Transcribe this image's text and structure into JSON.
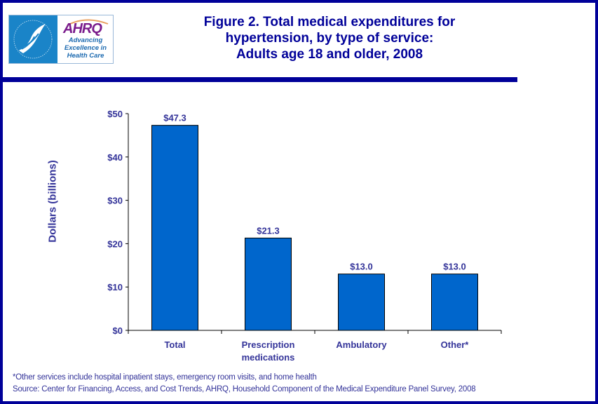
{
  "logo": {
    "hhs_alt": "Department of Health & Human Services USA",
    "ahrq_mark": "AHRQ",
    "tagline": [
      "Advancing",
      "Excellence in",
      "Health Care"
    ]
  },
  "title_lines": [
    "Figure 2. Total medical expenditures for",
    "hypertension, by type of service:",
    "Adults age 18 and older, 2008"
  ],
  "colors": {
    "frame": "#000099",
    "bar": "#0066cc",
    "text": "#333399"
  },
  "chart_data": {
    "type": "bar",
    "title": "Figure 2. Total medical expenditures for hypertension, by type of service: Adults age 18 and older, 2008",
    "xlabel": "",
    "ylabel": "Dollars (billions)",
    "categories": [
      "Total",
      "Prescription medications",
      "Ambulatory",
      "Other*"
    ],
    "category_lines": [
      [
        "Total"
      ],
      [
        "Prescription",
        "medications"
      ],
      [
        "Ambulatory"
      ],
      [
        "Other*"
      ]
    ],
    "values": [
      47.3,
      21.3,
      13.0,
      13.0
    ],
    "data_labels": [
      "$47.3",
      "$21.3",
      "$13.0",
      "$13.0"
    ],
    "ylim": [
      0,
      50
    ],
    "yticks": [
      0,
      10,
      20,
      30,
      40,
      50
    ],
    "ytick_labels": [
      "$0",
      "$10",
      "$20",
      "$30",
      "$40",
      "$50"
    ],
    "grid": false,
    "legend": "none"
  },
  "footnote": "*Other services include hospital inpatient stays, emergency room visits, and home health",
  "source": "Source: Center for Financing, Access, and Cost Trends, AHRQ, Household Component of the Medical Expenditure Panel Survey, 2008"
}
